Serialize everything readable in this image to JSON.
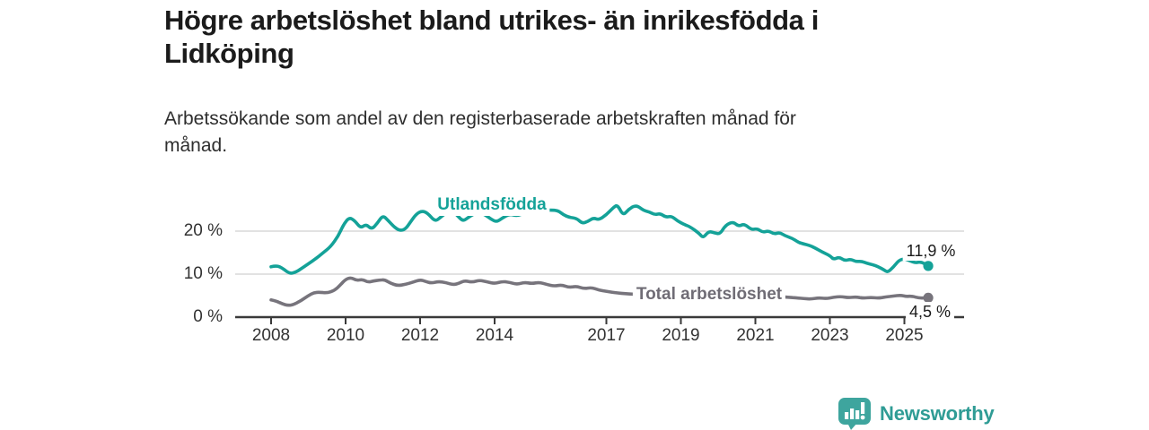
{
  "header": {
    "title_line1": "Högre arbetslöshet bland utrikes- än inrikesfödda i",
    "title_line2": "Lidköping",
    "subtitle_line1": "Arbetssökande som andel av den registerbaserade arbetskraften månad för",
    "subtitle_line2": "månad."
  },
  "chart_data": {
    "type": "line",
    "title": "Högre arbetslöshet bland utrikes- än inrikesfödda i Lidköping",
    "subtitle": "Arbetssökande som andel av den registerbaserade arbetskraften månad för månad.",
    "x_unit": "year (monthly data, decimal years)",
    "xlim": [
      2008,
      2025.7
    ],
    "ylim": [
      0,
      27
    ],
    "grid": "horizontal gridlines at 10 and 20, x axis baseline with ticks",
    "legend_position": "inline labels on lines, value labels at line ends",
    "x_ticks": [
      2008,
      2010,
      2012,
      2014,
      2017,
      2019,
      2021,
      2023,
      2025
    ],
    "x_tick_labels": [
      "2008",
      "2010",
      "2012",
      "2014",
      "2017",
      "2019",
      "2021",
      "2023",
      "2025"
    ],
    "y_ticks": [
      {
        "value": 0,
        "label": "0 %"
      },
      {
        "value": 10,
        "label": "10 %"
      },
      {
        "value": 20,
        "label": "20 %"
      }
    ],
    "series": [
      {
        "name": "Utlandsfödda",
        "color": "#14a298",
        "end_label": "11,9 %",
        "end_value": 11.9,
        "points": [
          [
            2008.0,
            11.7
          ],
          [
            2008.15,
            12.0
          ],
          [
            2008.3,
            11.4
          ],
          [
            2008.5,
            10.1
          ],
          [
            2008.65,
            10.4
          ],
          [
            2008.8,
            11.2
          ],
          [
            2009.0,
            12.4
          ],
          [
            2009.2,
            13.6
          ],
          [
            2009.4,
            15.0
          ],
          [
            2009.6,
            16.4
          ],
          [
            2009.8,
            18.8
          ],
          [
            2009.95,
            21.6
          ],
          [
            2010.1,
            23.2
          ],
          [
            2010.25,
            22.4
          ],
          [
            2010.4,
            20.7
          ],
          [
            2010.55,
            21.6
          ],
          [
            2010.7,
            20.4
          ],
          [
            2010.85,
            21.8
          ],
          [
            2011.0,
            23.7
          ],
          [
            2011.15,
            22.4
          ],
          [
            2011.3,
            21.0
          ],
          [
            2011.45,
            20.1
          ],
          [
            2011.6,
            20.4
          ],
          [
            2011.75,
            22.2
          ],
          [
            2011.9,
            24.0
          ],
          [
            2012.05,
            24.7
          ],
          [
            2012.2,
            24.2
          ],
          [
            2012.4,
            22.2
          ],
          [
            2012.55,
            23.2
          ],
          [
            2012.7,
            24.3
          ],
          [
            2012.85,
            25.0
          ],
          [
            2013.0,
            23.6
          ],
          [
            2013.15,
            22.3
          ],
          [
            2013.3,
            23.2
          ],
          [
            2013.45,
            24.1
          ],
          [
            2013.6,
            24.3
          ],
          [
            2013.75,
            23.8
          ],
          [
            2013.9,
            22.8
          ],
          [
            2014.05,
            22.1
          ],
          [
            2014.2,
            23.0
          ],
          [
            2014.4,
            24.0
          ],
          [
            2014.6,
            23.5
          ],
          [
            2014.8,
            24.2
          ],
          [
            2015.0,
            24.6
          ],
          [
            2015.15,
            25.2
          ],
          [
            2015.3,
            24.8
          ],
          [
            2015.5,
            24.9
          ],
          [
            2015.7,
            24.8
          ],
          [
            2015.85,
            23.8
          ],
          [
            2016.0,
            23.2
          ],
          [
            2016.2,
            23.0
          ],
          [
            2016.35,
            21.8
          ],
          [
            2016.5,
            22.2
          ],
          [
            2016.65,
            23.1
          ],
          [
            2016.8,
            22.6
          ],
          [
            2017.0,
            23.8
          ],
          [
            2017.2,
            25.6
          ],
          [
            2017.3,
            26.1
          ],
          [
            2017.45,
            23.6
          ],
          [
            2017.6,
            25.1
          ],
          [
            2017.8,
            26.1
          ],
          [
            2018.0,
            24.8
          ],
          [
            2018.15,
            24.5
          ],
          [
            2018.3,
            23.8
          ],
          [
            2018.45,
            24.1
          ],
          [
            2018.6,
            23.2
          ],
          [
            2018.75,
            23.5
          ],
          [
            2018.9,
            22.4
          ],
          [
            2019.1,
            21.5
          ],
          [
            2019.25,
            21.0
          ],
          [
            2019.5,
            19.4
          ],
          [
            2019.6,
            18.4
          ],
          [
            2019.75,
            20.0
          ],
          [
            2019.9,
            19.6
          ],
          [
            2020.05,
            19.3
          ],
          [
            2020.2,
            21.4
          ],
          [
            2020.4,
            22.2
          ],
          [
            2020.55,
            21.1
          ],
          [
            2020.7,
            21.7
          ],
          [
            2020.9,
            20.3
          ],
          [
            2021.05,
            20.6
          ],
          [
            2021.2,
            19.7
          ],
          [
            2021.35,
            20.1
          ],
          [
            2021.5,
            19.3
          ],
          [
            2021.65,
            19.7
          ],
          [
            2021.8,
            18.9
          ],
          [
            2022.0,
            18.3
          ],
          [
            2022.15,
            17.4
          ],
          [
            2022.3,
            17.0
          ],
          [
            2022.45,
            16.7
          ],
          [
            2022.6,
            16.1
          ],
          [
            2022.8,
            15.1
          ],
          [
            2023.0,
            14.3
          ],
          [
            2023.1,
            13.4
          ],
          [
            2023.25,
            14.0
          ],
          [
            2023.4,
            13.1
          ],
          [
            2023.55,
            13.5
          ],
          [
            2023.7,
            12.9
          ],
          [
            2023.85,
            13.0
          ],
          [
            2024.0,
            12.5
          ],
          [
            2024.15,
            12.2
          ],
          [
            2024.3,
            11.7
          ],
          [
            2024.45,
            11.0
          ],
          [
            2024.55,
            10.4
          ],
          [
            2024.7,
            11.6
          ],
          [
            2024.85,
            13.2
          ],
          [
            2025.0,
            13.6
          ],
          [
            2025.15,
            13.1
          ],
          [
            2025.3,
            12.6
          ],
          [
            2025.45,
            12.9
          ],
          [
            2025.64,
            11.9
          ]
        ]
      },
      {
        "name": "Total arbetslöshet",
        "color": "#77747c",
        "end_label": "4,5 %",
        "end_value": 4.5,
        "points": [
          [
            2008.0,
            4.0
          ],
          [
            2008.15,
            3.7
          ],
          [
            2008.3,
            3.1
          ],
          [
            2008.45,
            2.7
          ],
          [
            2008.6,
            2.9
          ],
          [
            2008.8,
            3.8
          ],
          [
            2009.0,
            5.0
          ],
          [
            2009.15,
            5.7
          ],
          [
            2009.3,
            5.8
          ],
          [
            2009.5,
            5.6
          ],
          [
            2009.7,
            6.2
          ],
          [
            2009.85,
            7.4
          ],
          [
            2010.0,
            8.8
          ],
          [
            2010.15,
            9.2
          ],
          [
            2010.3,
            8.5
          ],
          [
            2010.45,
            8.8
          ],
          [
            2010.6,
            8.1
          ],
          [
            2010.75,
            8.4
          ],
          [
            2010.9,
            8.6
          ],
          [
            2011.05,
            8.7
          ],
          [
            2011.2,
            7.9
          ],
          [
            2011.4,
            7.3
          ],
          [
            2011.6,
            7.6
          ],
          [
            2011.8,
            8.1
          ],
          [
            2012.0,
            8.7
          ],
          [
            2012.15,
            8.3
          ],
          [
            2012.3,
            7.9
          ],
          [
            2012.5,
            8.3
          ],
          [
            2012.7,
            8.0
          ],
          [
            2012.9,
            7.5
          ],
          [
            2013.05,
            7.9
          ],
          [
            2013.2,
            8.5
          ],
          [
            2013.4,
            8.1
          ],
          [
            2013.6,
            8.6
          ],
          [
            2013.8,
            8.2
          ],
          [
            2014.0,
            7.8
          ],
          [
            2014.2,
            8.3
          ],
          [
            2014.4,
            8.1
          ],
          [
            2014.6,
            7.6
          ],
          [
            2014.8,
            8.1
          ],
          [
            2015.0,
            7.8
          ],
          [
            2015.2,
            8.1
          ],
          [
            2015.4,
            7.6
          ],
          [
            2015.6,
            7.2
          ],
          [
            2015.8,
            7.5
          ],
          [
            2016.0,
            6.9
          ],
          [
            2016.2,
            7.2
          ],
          [
            2016.4,
            6.6
          ],
          [
            2016.6,
            6.9
          ],
          [
            2016.8,
            6.3
          ],
          [
            2017.0,
            6.0
          ],
          [
            2017.2,
            5.7
          ],
          [
            2017.6,
            5.4
          ],
          [
            2018.0,
            5.2
          ],
          [
            2018.5,
            5.0
          ],
          [
            2019.0,
            4.8
          ],
          [
            2019.5,
            4.7
          ],
          [
            2020.0,
            5.0
          ],
          [
            2020.4,
            5.6
          ],
          [
            2020.8,
            5.4
          ],
          [
            2021.2,
            5.1
          ],
          [
            2021.6,
            4.8
          ],
          [
            2021.9,
            4.6
          ],
          [
            2022.1,
            4.5
          ],
          [
            2022.3,
            4.3
          ],
          [
            2022.5,
            4.2
          ],
          [
            2022.7,
            4.5
          ],
          [
            2022.9,
            4.3
          ],
          [
            2023.1,
            4.6
          ],
          [
            2023.3,
            4.8
          ],
          [
            2023.5,
            4.5
          ],
          [
            2023.7,
            4.7
          ],
          [
            2023.9,
            4.4
          ],
          [
            2024.1,
            4.6
          ],
          [
            2024.3,
            4.4
          ],
          [
            2024.5,
            4.7
          ],
          [
            2024.7,
            4.9
          ],
          [
            2024.9,
            5.1
          ],
          [
            2025.05,
            4.8
          ],
          [
            2025.2,
            4.9
          ],
          [
            2025.4,
            4.4
          ],
          [
            2025.64,
            4.5
          ]
        ]
      }
    ]
  },
  "branding": {
    "logo_text": "Newsworthy",
    "brand_color": "#2f9c95",
    "icon_color": "#3ea59e",
    "logo_icon": "speech-bubble-with-bar-chart-and-exclamation"
  },
  "colors": {
    "background": "#ffffff",
    "title_text": "#1b1b1b",
    "axis_text": "#333333",
    "gridline": "#d8d8d8",
    "axis_line": "#3a3a3a",
    "series_utlandsfodda": "#14a298",
    "series_total": "#77747c"
  }
}
